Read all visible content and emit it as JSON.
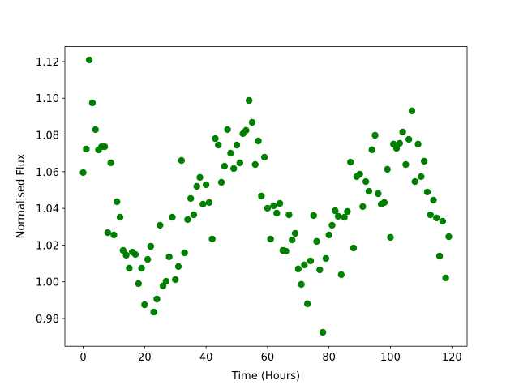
{
  "chart_data": {
    "type": "scatter",
    "xlabel": "Time (Hours)",
    "ylabel": "Normalised Flux",
    "color": "#008000",
    "x": [
      0,
      1,
      2,
      3,
      4,
      5,
      6,
      7,
      8,
      9,
      10,
      11,
      12,
      13,
      14,
      15,
      16,
      17,
      18,
      19,
      20,
      21,
      22,
      23,
      24,
      25,
      26,
      27,
      28,
      29,
      30,
      31,
      32,
      33,
      34,
      35,
      36,
      37,
      38,
      39,
      40,
      41,
      42,
      43,
      44,
      45,
      46,
      47,
      48,
      49,
      50,
      51,
      52,
      53,
      54,
      55,
      56,
      57,
      58,
      59,
      60,
      61,
      62,
      63,
      64,
      65,
      66,
      67,
      68,
      69,
      70,
      71,
      72,
      73,
      74,
      75,
      76,
      77,
      78,
      79,
      80,
      81,
      82,
      83,
      84,
      85,
      86,
      87,
      88,
      89,
      90,
      91,
      92,
      93,
      94,
      95,
      96,
      97,
      98,
      99,
      100,
      101,
      102,
      103,
      104,
      105,
      106,
      107,
      108,
      109,
      110,
      111,
      112,
      113,
      114,
      115,
      116,
      117,
      118,
      119
    ],
    "values": [
      1.0595,
      1.0723,
      1.1209,
      1.0975,
      1.0829,
      1.0719,
      1.0736,
      1.0736,
      1.0268,
      1.0648,
      1.0255,
      1.0436,
      1.0352,
      1.0171,
      1.0145,
      1.0074,
      1.0162,
      1.0149,
      0.999,
      1.0074,
      0.9875,
      1.0122,
      1.0193,
      0.9835,
      0.9906,
      1.0308,
      0.9978,
      1.0003,
      1.0136,
      1.0352,
      1.0012,
      1.0083,
      1.0661,
      1.0158,
      1.0339,
      1.0454,
      1.0365,
      1.052,
      1.0569,
      1.0423,
      1.0529,
      1.0432,
      1.0233,
      1.078,
      1.0745,
      1.0542,
      1.063,
      1.0829,
      1.0701,
      1.0617,
      1.0745,
      1.0648,
      1.0807,
      1.0825,
      1.0988,
      1.0869,
      1.0639,
      1.0767,
      1.0467,
      1.0679,
      1.0401,
      1.0233,
      1.0414,
      1.0374,
      1.0427,
      1.0171,
      1.0167,
      1.0365,
      1.0228,
      1.0264,
      1.007,
      0.9986,
      1.0092,
      0.988,
      1.0114,
      1.0361,
      1.022,
      1.0065,
      0.9725,
      1.0127,
      1.0255,
      1.0308,
      1.0387,
      1.0357,
      1.0039,
      1.0352,
      1.0383,
      1.0652,
      1.0184,
      1.0573,
      1.0586,
      1.041,
      1.0546,
      1.0493,
      1.0719,
      1.0798,
      1.048,
      1.0423,
      1.0432,
      1.0613,
      1.0242,
      1.075,
      1.0727,
      1.0754,
      1.0816,
      1.0639,
      1.0776,
      1.0931,
      1.0546,
      1.075,
      1.0573,
      1.0657,
      1.0489,
      1.0365,
      1.0445,
      1.0348,
      1.014,
      1.033,
      1.0021,
      1.0246
    ],
    "xlim": [
      -5.95,
      124.95
    ],
    "xticks": [
      0,
      20,
      40,
      60,
      80,
      100,
      120
    ],
    "ylim": [
      0.9649,
      1.1281
    ],
    "yticks": [
      0.98,
      {
        "value": 1,
        "label": "1.00"
      },
      1.02,
      1.04,
      1.06,
      1.08,
      {
        "value": 1.1,
        "label": "1.10"
      },
      1.12
    ]
  }
}
